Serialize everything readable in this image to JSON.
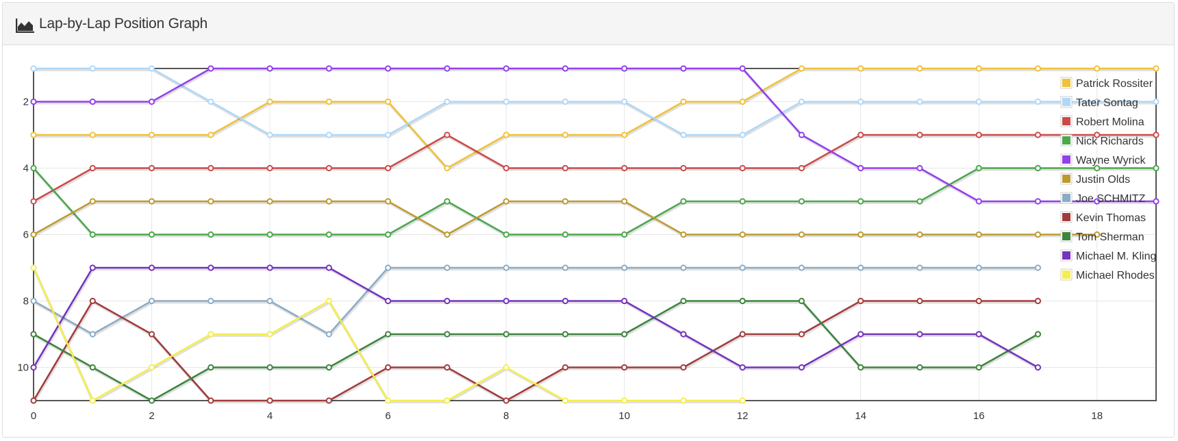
{
  "panel": {
    "title": "Lap-by-Lap Position Graph",
    "icon": "area-chart-icon"
  },
  "chart_data": {
    "type": "line",
    "title": "",
    "xlabel": "",
    "ylabel": "",
    "xlim": [
      0,
      19
    ],
    "ylim": [
      1,
      11
    ],
    "y_inverted": true,
    "x_ticks": [
      0,
      2,
      4,
      6,
      8,
      10,
      12,
      14,
      16,
      18
    ],
    "y_ticks": [
      2,
      4,
      6,
      8,
      10
    ],
    "grid": true,
    "legend_position": "top-right",
    "series": [
      {
        "name": "Patrick Rossiter",
        "color": "#f0c23a",
        "x": [
          0,
          1,
          2,
          3,
          4,
          5,
          6,
          7,
          8,
          9,
          10,
          11,
          12,
          13,
          14,
          15,
          16,
          17,
          18,
          19
        ],
        "values": [
          3,
          3,
          3,
          3,
          2,
          2,
          2,
          4,
          3,
          3,
          3,
          2,
          2,
          1,
          1,
          1,
          1,
          1,
          1,
          1
        ]
      },
      {
        "name": "Tater Sontag",
        "color": "#afd8f8",
        "x": [
          0,
          1,
          2,
          3,
          4,
          5,
          6,
          7,
          8,
          9,
          10,
          11,
          12,
          13,
          14,
          15,
          16,
          17,
          18,
          19
        ],
        "values": [
          1,
          1,
          1,
          2,
          3,
          3,
          3,
          2,
          2,
          2,
          2,
          3,
          3,
          2,
          2,
          2,
          2,
          2,
          2,
          2
        ]
      },
      {
        "name": "Robert Molina",
        "color": "#cb4b4b",
        "x": [
          0,
          1,
          2,
          3,
          4,
          5,
          6,
          7,
          8,
          9,
          10,
          11,
          12,
          13,
          14,
          15,
          16,
          17,
          18,
          19
        ],
        "values": [
          5,
          4,
          4,
          4,
          4,
          4,
          4,
          3,
          4,
          4,
          4,
          4,
          4,
          4,
          3,
          3,
          3,
          3,
          3,
          3
        ]
      },
      {
        "name": "Nick Richards",
        "color": "#4da74d",
        "x": [
          0,
          1,
          2,
          3,
          4,
          5,
          6,
          7,
          8,
          9,
          10,
          11,
          12,
          13,
          14,
          15,
          16,
          17,
          18,
          19
        ],
        "values": [
          4,
          6,
          6,
          6,
          6,
          6,
          6,
          5,
          6,
          6,
          6,
          5,
          5,
          5,
          5,
          5,
          4,
          4,
          4,
          4
        ]
      },
      {
        "name": "Wayne Wyrick",
        "color": "#9440ed",
        "x": [
          0,
          1,
          2,
          3,
          4,
          5,
          6,
          7,
          8,
          9,
          10,
          11,
          12,
          13,
          14,
          15,
          16,
          17,
          18,
          19
        ],
        "values": [
          2,
          2,
          2,
          1,
          1,
          1,
          1,
          1,
          1,
          1,
          1,
          1,
          1,
          3,
          4,
          4,
          5,
          5,
          5,
          5
        ]
      },
      {
        "name": "Justin Olds",
        "color": "#bd9b33",
        "x": [
          0,
          1,
          2,
          3,
          4,
          5,
          6,
          7,
          8,
          9,
          10,
          11,
          12,
          13,
          14,
          15,
          16,
          17,
          18
        ],
        "values": [
          6,
          5,
          5,
          5,
          5,
          5,
          5,
          6,
          5,
          5,
          5,
          6,
          6,
          6,
          6,
          6,
          6,
          6,
          6
        ]
      },
      {
        "name": "Joe SCHMITZ",
        "color": "#8cacc6",
        "x": [
          0,
          1,
          2,
          3,
          4,
          5,
          6,
          7,
          8,
          9,
          10,
          11,
          12,
          13,
          14,
          15,
          16,
          17
        ],
        "values": [
          8,
          9,
          8,
          8,
          8,
          9,
          7,
          7,
          7,
          7,
          7,
          7,
          7,
          7,
          7,
          7,
          7,
          7
        ]
      },
      {
        "name": "Kevin Thomas",
        "color": "#a23c3c",
        "x": [
          0,
          1,
          2,
          3,
          4,
          5,
          6,
          7,
          8,
          9,
          10,
          11,
          12,
          13,
          14,
          15,
          16,
          17
        ],
        "values": [
          11,
          8,
          9,
          11,
          11,
          11,
          10,
          10,
          11,
          10,
          10,
          10,
          9,
          9,
          8,
          8,
          8,
          8
        ]
      },
      {
        "name": "Tom Sherman",
        "color": "#3d853d",
        "x": [
          0,
          1,
          2,
          3,
          4,
          5,
          6,
          7,
          8,
          9,
          10,
          11,
          12,
          13,
          14,
          15,
          16,
          17
        ],
        "values": [
          9,
          10,
          11,
          10,
          10,
          10,
          9,
          9,
          9,
          9,
          9,
          8,
          8,
          8,
          10,
          10,
          10,
          9
        ]
      },
      {
        "name": "Michael M. Kling",
        "color": "#7633bd",
        "x": [
          0,
          1,
          2,
          3,
          4,
          5,
          6,
          7,
          8,
          9,
          10,
          11,
          12,
          13,
          14,
          15,
          16,
          17
        ],
        "values": [
          10,
          7,
          7,
          7,
          7,
          7,
          8,
          8,
          8,
          8,
          8,
          9,
          10,
          10,
          9,
          9,
          9,
          10
        ]
      },
      {
        "name": "Michael Rhodes",
        "color": "#f6ee4c",
        "x": [
          0,
          1,
          2,
          3,
          4,
          5,
          6,
          7,
          8,
          9,
          10,
          11,
          12
        ],
        "values": [
          7,
          11,
          10,
          9,
          9,
          8,
          11,
          11,
          10,
          11,
          11,
          11,
          11
        ]
      }
    ]
  }
}
